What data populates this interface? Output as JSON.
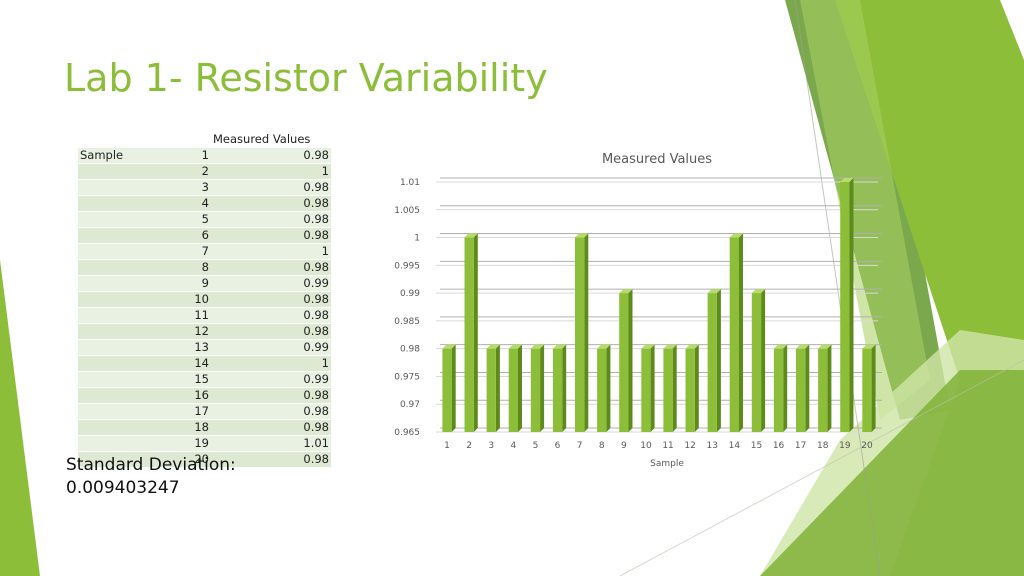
{
  "slide": {
    "title": "Lab 1- Resistor Variability",
    "accent_color": "#8cbe3a"
  },
  "table": {
    "header": "Measured Values",
    "row_label": "Sample",
    "rows": [
      {
        "sample": "1",
        "value": "0.98"
      },
      {
        "sample": "2",
        "value": "1"
      },
      {
        "sample": "3",
        "value": "0.98"
      },
      {
        "sample": "4",
        "value": "0.98"
      },
      {
        "sample": "5",
        "value": "0.98"
      },
      {
        "sample": "6",
        "value": "0.98"
      },
      {
        "sample": "7",
        "value": "1"
      },
      {
        "sample": "8",
        "value": "0.98"
      },
      {
        "sample": "9",
        "value": "0.99"
      },
      {
        "sample": "10",
        "value": "0.98"
      },
      {
        "sample": "11",
        "value": "0.98"
      },
      {
        "sample": "12",
        "value": "0.98"
      },
      {
        "sample": "13",
        "value": "0.99"
      },
      {
        "sample": "14",
        "value": "1"
      },
      {
        "sample": "15",
        "value": "0.99"
      },
      {
        "sample": "16",
        "value": "0.98"
      },
      {
        "sample": "17",
        "value": "0.98"
      },
      {
        "sample": "18",
        "value": "0.98"
      },
      {
        "sample": "19",
        "value": "1.01"
      },
      {
        "sample": "20",
        "value": "0.98"
      }
    ]
  },
  "stats": {
    "std_label": "Standard Deviation:",
    "std_value": "0.009403247"
  },
  "chart_data": {
    "type": "bar",
    "title": "Measured Values",
    "xlabel": "Sample",
    "ylabel": "",
    "categories": [
      "1",
      "2",
      "3",
      "4",
      "5",
      "6",
      "7",
      "8",
      "9",
      "10",
      "11",
      "12",
      "13",
      "14",
      "15",
      "16",
      "17",
      "18",
      "19",
      "20"
    ],
    "values": [
      0.98,
      1,
      0.98,
      0.98,
      0.98,
      0.98,
      1,
      0.98,
      0.99,
      0.98,
      0.98,
      0.98,
      0.99,
      1,
      0.99,
      0.98,
      0.98,
      0.98,
      1.01,
      0.98
    ],
    "ylim": [
      0.965,
      1.01
    ],
    "yticks": [
      "0.965",
      "0.97",
      "0.975",
      "0.98",
      "0.985",
      "0.99",
      "0.995",
      "1",
      "1.005",
      "1.01"
    ],
    "grid": true,
    "bar_color": "#8cbe3a",
    "legend": "none"
  }
}
